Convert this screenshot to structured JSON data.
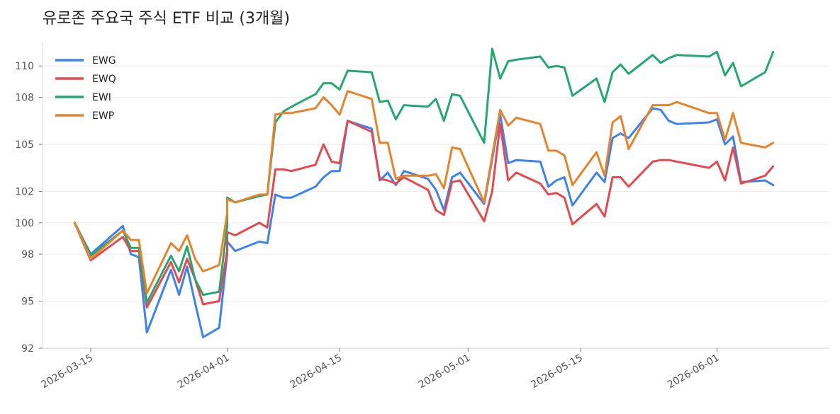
{
  "chart_data": {
    "type": "line",
    "title": "유로존 주요국 주식 ETF 비교 (3개월)",
    "xlabel": "",
    "ylabel": "",
    "x_range": [
      "2026-03-09",
      "2026-06-15"
    ],
    "ylim": [
      92,
      111.5
    ],
    "yticks": [
      92,
      95,
      98,
      100,
      102,
      105,
      108,
      110
    ],
    "xticks": [
      "2026-03-15",
      "2026-04-01",
      "2026-04-15",
      "2026-05-01",
      "2026-05-15",
      "2026-06-01"
    ],
    "grid": "horizontal",
    "legend_position": "top-left",
    "series": [
      {
        "name": "EWG",
        "color": "#3b82f6",
        "points": [
          [
            "2026-03-13",
            100.0
          ],
          [
            "2026-03-15",
            98.0
          ],
          [
            "2026-03-19",
            99.8
          ],
          [
            "2026-03-20",
            98.0
          ],
          [
            "2026-03-21",
            97.8
          ],
          [
            "2026-03-22",
            93.0
          ],
          [
            "2026-03-25",
            97.0
          ],
          [
            "2026-03-26",
            95.4
          ],
          [
            "2026-03-27",
            97.2
          ],
          [
            "2026-03-28",
            94.9
          ],
          [
            "2026-03-29",
            92.7
          ],
          [
            "2026-03-31",
            93.3
          ],
          [
            "2026-04-01",
            98.0
          ],
          [
            "2026-04-01",
            98.8
          ],
          [
            "2026-04-02",
            98.2
          ],
          [
            "2026-04-05",
            98.8
          ],
          [
            "2026-04-06",
            98.7
          ],
          [
            "2026-04-07",
            101.8
          ],
          [
            "2026-04-08",
            101.6
          ],
          [
            "2026-04-09",
            101.6
          ],
          [
            "2026-04-12",
            102.3
          ],
          [
            "2026-04-13",
            102.9
          ],
          [
            "2026-04-14",
            103.3
          ],
          [
            "2026-04-15",
            103.3
          ],
          [
            "2026-04-16",
            106.5
          ],
          [
            "2026-04-19",
            106.0
          ],
          [
            "2026-04-20",
            102.7
          ],
          [
            "2026-04-21",
            103.2
          ],
          [
            "2026-04-22",
            102.4
          ],
          [
            "2026-04-23",
            103.3
          ],
          [
            "2026-04-26",
            102.8
          ],
          [
            "2026-04-27",
            102.1
          ],
          [
            "2026-04-28",
            100.8
          ],
          [
            "2026-04-29",
            102.9
          ],
          [
            "2026-04-30",
            103.2
          ],
          [
            "2026-05-03",
            101.2
          ],
          [
            "2026-05-05",
            106.9
          ],
          [
            "2026-05-06",
            103.8
          ],
          [
            "2026-05-07",
            104.0
          ],
          [
            "2026-05-10",
            103.9
          ],
          [
            "2026-05-11",
            102.3
          ],
          [
            "2026-05-12",
            102.7
          ],
          [
            "2026-05-13",
            102.9
          ],
          [
            "2026-05-14",
            101.1
          ],
          [
            "2026-05-17",
            103.2
          ],
          [
            "2026-05-18",
            102.6
          ],
          [
            "2026-05-19",
            105.4
          ],
          [
            "2026-05-20",
            105.7
          ],
          [
            "2026-05-21",
            105.4
          ],
          [
            "2026-05-24",
            107.3
          ],
          [
            "2026-05-25",
            107.2
          ],
          [
            "2026-05-26",
            106.5
          ],
          [
            "2026-05-27",
            106.3
          ],
          [
            "2026-05-31",
            106.4
          ],
          [
            "2026-06-01",
            106.6
          ],
          [
            "2026-06-02",
            105.0
          ],
          [
            "2026-06-03",
            105.5
          ],
          [
            "2026-06-04",
            102.6
          ],
          [
            "2026-06-07",
            102.7
          ],
          [
            "2026-06-08",
            102.4
          ]
        ]
      },
      {
        "name": "EWQ",
        "color": "#e5484d",
        "points": [
          [
            "2026-03-13",
            100.0
          ],
          [
            "2026-03-15",
            97.6
          ],
          [
            "2026-03-19",
            99.1
          ],
          [
            "2026-03-20",
            98.2
          ],
          [
            "2026-03-21",
            98.2
          ],
          [
            "2026-03-22",
            94.6
          ],
          [
            "2026-03-25",
            97.5
          ],
          [
            "2026-03-26",
            96.2
          ],
          [
            "2026-03-27",
            97.7
          ],
          [
            "2026-03-28",
            96.4
          ],
          [
            "2026-03-29",
            94.8
          ],
          [
            "2026-03-31",
            95.0
          ],
          [
            "2026-04-01",
            98.2
          ],
          [
            "2026-04-01",
            99.4
          ],
          [
            "2026-04-02",
            99.2
          ],
          [
            "2026-04-05",
            100.0
          ],
          [
            "2026-04-06",
            99.7
          ],
          [
            "2026-04-07",
            103.4
          ],
          [
            "2026-04-08",
            103.4
          ],
          [
            "2026-04-09",
            103.3
          ],
          [
            "2026-04-12",
            103.7
          ],
          [
            "2026-04-13",
            105.0
          ],
          [
            "2026-04-14",
            103.9
          ],
          [
            "2026-04-15",
            103.8
          ],
          [
            "2026-04-16",
            106.5
          ],
          [
            "2026-04-19",
            105.8
          ],
          [
            "2026-04-20",
            102.8
          ],
          [
            "2026-04-21",
            102.7
          ],
          [
            "2026-04-22",
            102.5
          ],
          [
            "2026-04-23",
            102.9
          ],
          [
            "2026-04-26",
            102.1
          ],
          [
            "2026-04-27",
            100.8
          ],
          [
            "2026-04-28",
            100.5
          ],
          [
            "2026-04-29",
            102.6
          ],
          [
            "2026-04-30",
            102.7
          ],
          [
            "2026-05-03",
            100.1
          ],
          [
            "2026-05-04",
            102.0
          ],
          [
            "2026-05-05",
            106.3
          ],
          [
            "2026-05-06",
            102.7
          ],
          [
            "2026-05-07",
            103.2
          ],
          [
            "2026-05-10",
            102.5
          ],
          [
            "2026-05-11",
            101.8
          ],
          [
            "2026-05-12",
            101.9
          ],
          [
            "2026-05-13",
            101.6
          ],
          [
            "2026-05-14",
            99.9
          ],
          [
            "2026-05-17",
            101.2
          ],
          [
            "2026-05-18",
            100.4
          ],
          [
            "2026-05-19",
            102.9
          ],
          [
            "2026-05-20",
            102.9
          ],
          [
            "2026-05-21",
            102.3
          ],
          [
            "2026-05-24",
            103.9
          ],
          [
            "2026-05-25",
            104.0
          ],
          [
            "2026-05-26",
            104.0
          ],
          [
            "2026-05-27",
            103.9
          ],
          [
            "2026-05-31",
            103.5
          ],
          [
            "2026-06-01",
            103.9
          ],
          [
            "2026-06-02",
            102.7
          ],
          [
            "2026-06-03",
            104.8
          ],
          [
            "2026-06-04",
            102.5
          ],
          [
            "2026-06-07",
            103.0
          ],
          [
            "2026-06-08",
            103.6
          ]
        ]
      },
      {
        "name": "EWI",
        "color": "#22a870",
        "points": [
          [
            "2026-03-13",
            100.0
          ],
          [
            "2026-03-15",
            97.9
          ],
          [
            "2026-03-19",
            99.5
          ],
          [
            "2026-03-20",
            98.4
          ],
          [
            "2026-03-21",
            98.4
          ],
          [
            "2026-03-22",
            94.9
          ],
          [
            "2026-03-25",
            97.9
          ],
          [
            "2026-03-26",
            96.9
          ],
          [
            "2026-03-27",
            98.5
          ],
          [
            "2026-03-28",
            96.4
          ],
          [
            "2026-03-29",
            95.4
          ],
          [
            "2026-03-31",
            95.6
          ],
          [
            "2026-04-01",
            99.8
          ],
          [
            "2026-04-01",
            101.6
          ],
          [
            "2026-04-02",
            101.3
          ],
          [
            "2026-04-05",
            101.7
          ],
          [
            "2026-04-06",
            101.8
          ],
          [
            "2026-04-07",
            106.4
          ],
          [
            "2026-04-08",
            107.1
          ],
          [
            "2026-04-09",
            107.4
          ],
          [
            "2026-04-12",
            108.2
          ],
          [
            "2026-04-13",
            108.9
          ],
          [
            "2026-04-14",
            108.9
          ],
          [
            "2026-04-15",
            108.5
          ],
          [
            "2026-04-16",
            109.7
          ],
          [
            "2026-04-19",
            109.6
          ],
          [
            "2026-04-20",
            107.7
          ],
          [
            "2026-04-21",
            107.8
          ],
          [
            "2026-04-22",
            106.6
          ],
          [
            "2026-04-23",
            107.5
          ],
          [
            "2026-04-26",
            107.4
          ],
          [
            "2026-04-27",
            107.9
          ],
          [
            "2026-04-28",
            106.5
          ],
          [
            "2026-04-29",
            108.2
          ],
          [
            "2026-04-30",
            108.1
          ],
          [
            "2026-05-03",
            105.1
          ],
          [
            "2026-05-04",
            111.1
          ],
          [
            "2026-05-05",
            109.2
          ],
          [
            "2026-05-06",
            110.3
          ],
          [
            "2026-05-07",
            110.4
          ],
          [
            "2026-05-10",
            110.6
          ],
          [
            "2026-05-11",
            109.9
          ],
          [
            "2026-05-12",
            110.0
          ],
          [
            "2026-05-13",
            109.9
          ],
          [
            "2026-05-14",
            108.1
          ],
          [
            "2026-05-17",
            109.2
          ],
          [
            "2026-05-18",
            107.7
          ],
          [
            "2026-05-19",
            109.6
          ],
          [
            "2026-05-20",
            110.1
          ],
          [
            "2026-05-21",
            109.5
          ],
          [
            "2026-05-24",
            110.7
          ],
          [
            "2026-05-25",
            110.2
          ],
          [
            "2026-05-26",
            110.5
          ],
          [
            "2026-05-27",
            110.7
          ],
          [
            "2026-05-31",
            110.6
          ],
          [
            "2026-06-01",
            110.9
          ],
          [
            "2026-06-02",
            109.4
          ],
          [
            "2026-06-03",
            110.2
          ],
          [
            "2026-06-04",
            108.7
          ],
          [
            "2026-06-07",
            109.6
          ],
          [
            "2026-06-08",
            110.9
          ]
        ]
      },
      {
        "name": "EWP",
        "color": "#e8832a",
        "points": [
          [
            "2026-03-13",
            100.0
          ],
          [
            "2026-03-15",
            97.7
          ],
          [
            "2026-03-19",
            99.5
          ],
          [
            "2026-03-20",
            98.9
          ],
          [
            "2026-03-21",
            98.9
          ],
          [
            "2026-03-22",
            95.5
          ],
          [
            "2026-03-25",
            98.7
          ],
          [
            "2026-03-26",
            98.2
          ],
          [
            "2026-03-27",
            99.2
          ],
          [
            "2026-03-28",
            97.7
          ],
          [
            "2026-03-29",
            96.9
          ],
          [
            "2026-03-31",
            97.3
          ],
          [
            "2026-04-01",
            100.6
          ],
          [
            "2026-04-01",
            101.5
          ],
          [
            "2026-04-02",
            101.3
          ],
          [
            "2026-04-05",
            101.8
          ],
          [
            "2026-04-06",
            101.8
          ],
          [
            "2026-04-07",
            106.9
          ],
          [
            "2026-04-08",
            107.0
          ],
          [
            "2026-04-09",
            107.0
          ],
          [
            "2026-04-12",
            107.3
          ],
          [
            "2026-04-13",
            108.0
          ],
          [
            "2026-04-14",
            107.5
          ],
          [
            "2026-04-15",
            106.9
          ],
          [
            "2026-04-16",
            108.4
          ],
          [
            "2026-04-19",
            107.9
          ],
          [
            "2026-04-20",
            105.1
          ],
          [
            "2026-04-21",
            105.1
          ],
          [
            "2026-04-22",
            102.8
          ],
          [
            "2026-04-23",
            103.0
          ],
          [
            "2026-04-26",
            103.0
          ],
          [
            "2026-04-27",
            103.1
          ],
          [
            "2026-04-28",
            102.2
          ],
          [
            "2026-04-29",
            104.8
          ],
          [
            "2026-04-30",
            104.7
          ],
          [
            "2026-05-03",
            101.3
          ],
          [
            "2026-05-05",
            107.2
          ],
          [
            "2026-05-06",
            106.2
          ],
          [
            "2026-05-07",
            106.7
          ],
          [
            "2026-05-10",
            106.3
          ],
          [
            "2026-05-11",
            104.6
          ],
          [
            "2026-05-12",
            104.6
          ],
          [
            "2026-05-13",
            104.3
          ],
          [
            "2026-05-14",
            102.4
          ],
          [
            "2026-05-17",
            104.5
          ],
          [
            "2026-05-18",
            103.0
          ],
          [
            "2026-05-19",
            106.4
          ],
          [
            "2026-05-20",
            106.8
          ],
          [
            "2026-05-21",
            104.7
          ],
          [
            "2026-05-24",
            107.5
          ],
          [
            "2026-05-25",
            107.5
          ],
          [
            "2026-05-26",
            107.5
          ],
          [
            "2026-05-27",
            107.7
          ],
          [
            "2026-05-31",
            107.0
          ],
          [
            "2026-06-01",
            107.0
          ],
          [
            "2026-06-02",
            105.3
          ],
          [
            "2026-06-03",
            107.0
          ],
          [
            "2026-06-04",
            105.1
          ],
          [
            "2026-06-07",
            104.8
          ],
          [
            "2026-06-08",
            105.1
          ]
        ]
      }
    ]
  }
}
